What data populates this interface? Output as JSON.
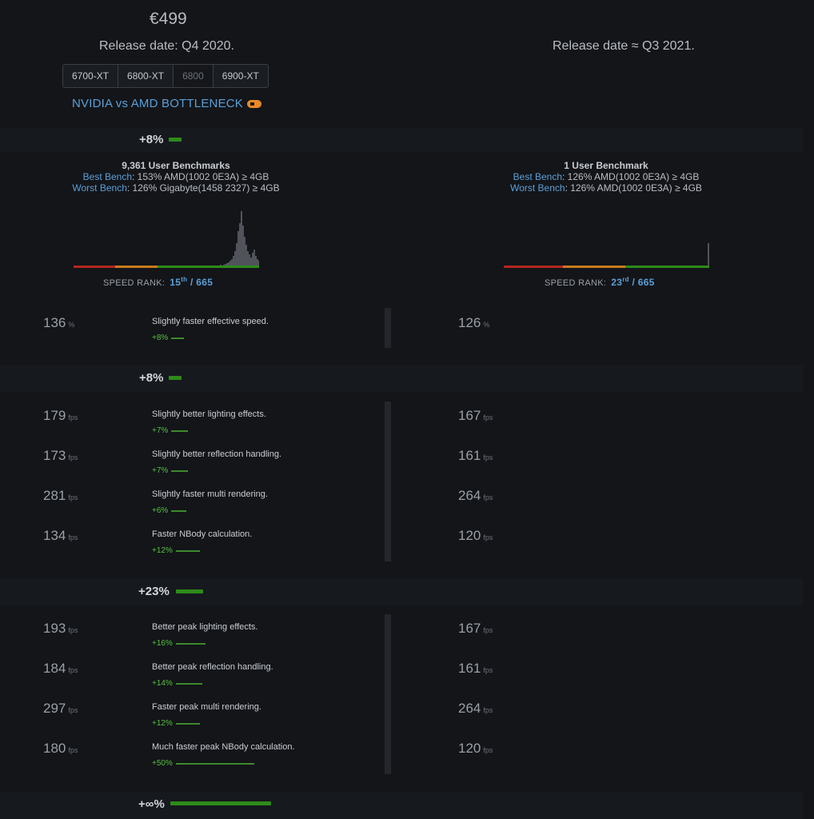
{
  "header": {
    "price": "€499",
    "left_release": "Release date: Q4 2020.",
    "right_release": "Release date ≈ Q3 2021.",
    "tabs": [
      "6700-XT",
      "6800-XT",
      "6800",
      "6900-XT"
    ],
    "bottleneck_link": "NVIDIA vs AMD BOTTLENECK"
  },
  "effective_section": {
    "pct": "+8%",
    "bar_fraction": 0.08
  },
  "benchmarks": {
    "left": {
      "title": "9,361 User Benchmarks",
      "best_label": "Best Bench",
      "best_value": ": 153% AMD(1002 0E3A) ≥ 4GB",
      "worst_label": "Worst Bench",
      "worst_value": ": 126% Gigabyte(1458 2327) ≥ 4GB",
      "speed_rank_label": "SPEED RANK:",
      "rank": "15",
      "rank_suffix": "th",
      "rank_total": " / 665"
    },
    "right": {
      "title": "1 User Benchmark",
      "best_label": "Best Bench",
      "best_value": ": 126% AMD(1002 0E3A) ≥ 4GB",
      "worst_label": "Worst Bench",
      "worst_value": ": 126% AMD(1002 0E3A) ≥ 4GB",
      "speed_rank_label": "SPEED RANK:",
      "rank": "23",
      "rank_suffix": "rd",
      "rank_total": " / 665"
    }
  },
  "effective_row": {
    "left": "136",
    "unit": "%",
    "desc": "Slightly faster effective speed.",
    "diff": "+8%",
    "right": "126"
  },
  "lighting_section": {
    "pct": "+8%"
  },
  "avg_rows": [
    {
      "left": "179",
      "unit": "fps",
      "desc": "Slightly better lighting effects.",
      "diff": "+7%",
      "right": "167",
      "fraction": 0.07
    },
    {
      "left": "173",
      "unit": "fps",
      "desc": "Slightly better reflection handling.",
      "diff": "+7%",
      "right": "161",
      "fraction": 0.07
    },
    {
      "left": "281",
      "unit": "fps",
      "desc": "Slightly faster multi rendering.",
      "diff": "+6%",
      "right": "264",
      "fraction": 0.06
    },
    {
      "left": "134",
      "unit": "fps",
      "desc": "Faster NBody calculation.",
      "diff": "+12%",
      "right": "120",
      "fraction": 0.12
    }
  ],
  "peak_section": {
    "pct": "+23%"
  },
  "peak_rows": [
    {
      "left": "193",
      "unit": "fps",
      "desc": "Better peak lighting effects.",
      "diff": "+16%",
      "right": "167",
      "fraction": 0.16
    },
    {
      "left": "184",
      "unit": "fps",
      "desc": "Better peak reflection handling.",
      "diff": "+14%",
      "right": "161",
      "fraction": 0.14
    },
    {
      "left": "297",
      "unit": "fps",
      "desc": "Faster peak multi rendering.",
      "diff": "+12%",
      "right": "264",
      "fraction": 0.12
    },
    {
      "left": "180",
      "unit": "fps",
      "desc": "Much faster peak NBody calculation.",
      "diff": "+50%",
      "right": "120",
      "fraction": 0.5
    }
  ],
  "last_section": {
    "pct": "+∞%"
  },
  "colors": {
    "accent_blue": "#5aa0d8",
    "green": "#2e8b19",
    "diff_green": "#54c13d",
    "orange": "#e98a25"
  }
}
